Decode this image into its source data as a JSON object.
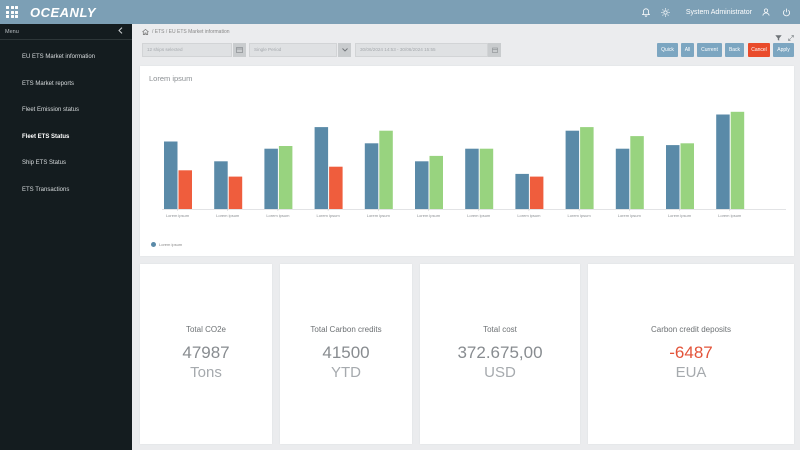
{
  "app": {
    "name": "OCEANLY"
  },
  "topbar": {
    "user": "System Administrator"
  },
  "sidebar": {
    "header": "Menu",
    "items": [
      {
        "label": "EU ETS Market information"
      },
      {
        "label": "ETS Market reports"
      },
      {
        "label": "Fleet Emission status"
      },
      {
        "label": "Fleet ETS Status",
        "active": true
      },
      {
        "label": "Ship ETS Status"
      },
      {
        "label": "ETS Transactions"
      }
    ]
  },
  "breadcrumb": {
    "text": "/ ETS / EU ETS Market information"
  },
  "filters": {
    "ships": "12 ships selected",
    "period": "Single Period",
    "range": "30/06/2024 14:53 - 30/06/2024 15:55"
  },
  "actions": {
    "quick": "Quick",
    "all": "All",
    "current": "Current",
    "back": "Back",
    "cancel": "Cancel",
    "apply": "Apply"
  },
  "colors": {
    "blue": "#5a8aa8",
    "green": "#98d37f",
    "red": "#ef5d3d",
    "accent_blue": "#7ca6c1",
    "cancel": "#e94b2b"
  },
  "chart_data": {
    "type": "bar",
    "title": "Lorem ipsum",
    "categories": [
      "Lorem ipsum",
      "Lorem ipsum",
      "Lorem ipsum",
      "Lorem ipsum",
      "Lorem ipsum",
      "Lorem ipsum",
      "Lorem ipsum",
      "Lorem ipsum",
      "Lorem ipsum",
      "Lorem ipsum",
      "Lorem ipsum",
      "Lorem ipsum"
    ],
    "series": [
      {
        "name": "Lorem ipsum",
        "values": [
          75,
          53,
          67,
          91,
          73,
          53,
          67,
          39,
          87,
          67,
          71,
          105
        ]
      },
      {
        "values": [
          43,
          36,
          70,
          47,
          87,
          59,
          67,
          36,
          91,
          81,
          73,
          108
        ]
      }
    ],
    "second_series_colors": [
      "#ef5d3d",
      "#ef5d3d",
      "#98d37f",
      "#ef5d3d",
      "#98d37f",
      "#98d37f",
      "#98d37f",
      "#ef5d3d",
      "#98d37f",
      "#98d37f",
      "#98d37f",
      "#98d37f"
    ],
    "ylim": [
      0,
      120
    ],
    "legend": "bottom-left"
  },
  "kpis": [
    {
      "label": "Total CO2e",
      "value": "47987",
      "unit": "Tons"
    },
    {
      "label": "Total Carbon credits",
      "value": "41500",
      "unit": "YTD"
    },
    {
      "label": "Total cost",
      "value": "372.675,00",
      "unit": "USD"
    },
    {
      "label": "Carbon credit deposits",
      "value": "-6487",
      "unit": "EUA"
    }
  ]
}
